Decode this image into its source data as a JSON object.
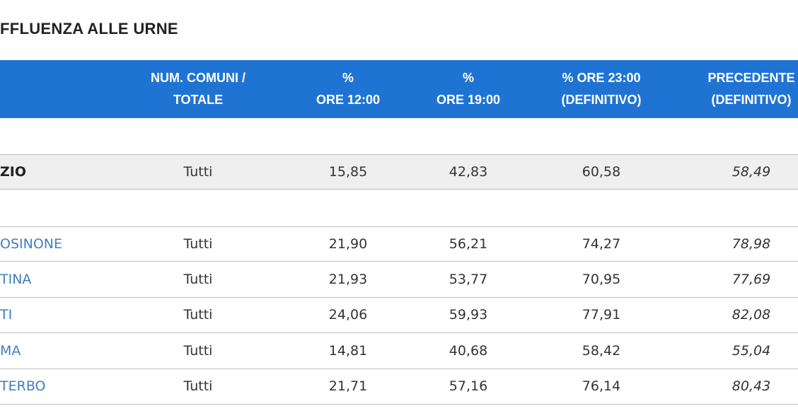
{
  "title": "FFLUENZA ALLE URNE",
  "table": {
    "header": [
      [],
      [
        "NUM. COMUNI /",
        "TOTALE"
      ],
      [
        "%",
        "ORE 12:00"
      ],
      [
        "%",
        "ORE 19:00"
      ],
      [
        "% ORE 23:00",
        "(DEFINITIVO)"
      ],
      [
        "PRECEDENTE",
        "(DEFINITIVO)"
      ]
    ],
    "region": [
      "ZIO",
      "Tutti",
      "15,85",
      "42,83",
      "60,58",
      "58,49"
    ],
    "rows": [
      [
        "OSINONE",
        "Tutti",
        "21,90",
        "56,21",
        "74,27",
        "78,98"
      ],
      [
        "TINA",
        "Tutti",
        "21,93",
        "53,77",
        "70,95",
        "77,69"
      ],
      [
        "TI",
        "Tutti",
        "24,06",
        "59,93",
        "77,91",
        "82,08"
      ],
      [
        "MA",
        "Tutti",
        "14,81",
        "40,68",
        "58,42",
        "55,04"
      ],
      [
        "TERBO",
        "Tutti",
        "21,71",
        "57,16",
        "76,14",
        "80,43"
      ]
    ]
  }
}
